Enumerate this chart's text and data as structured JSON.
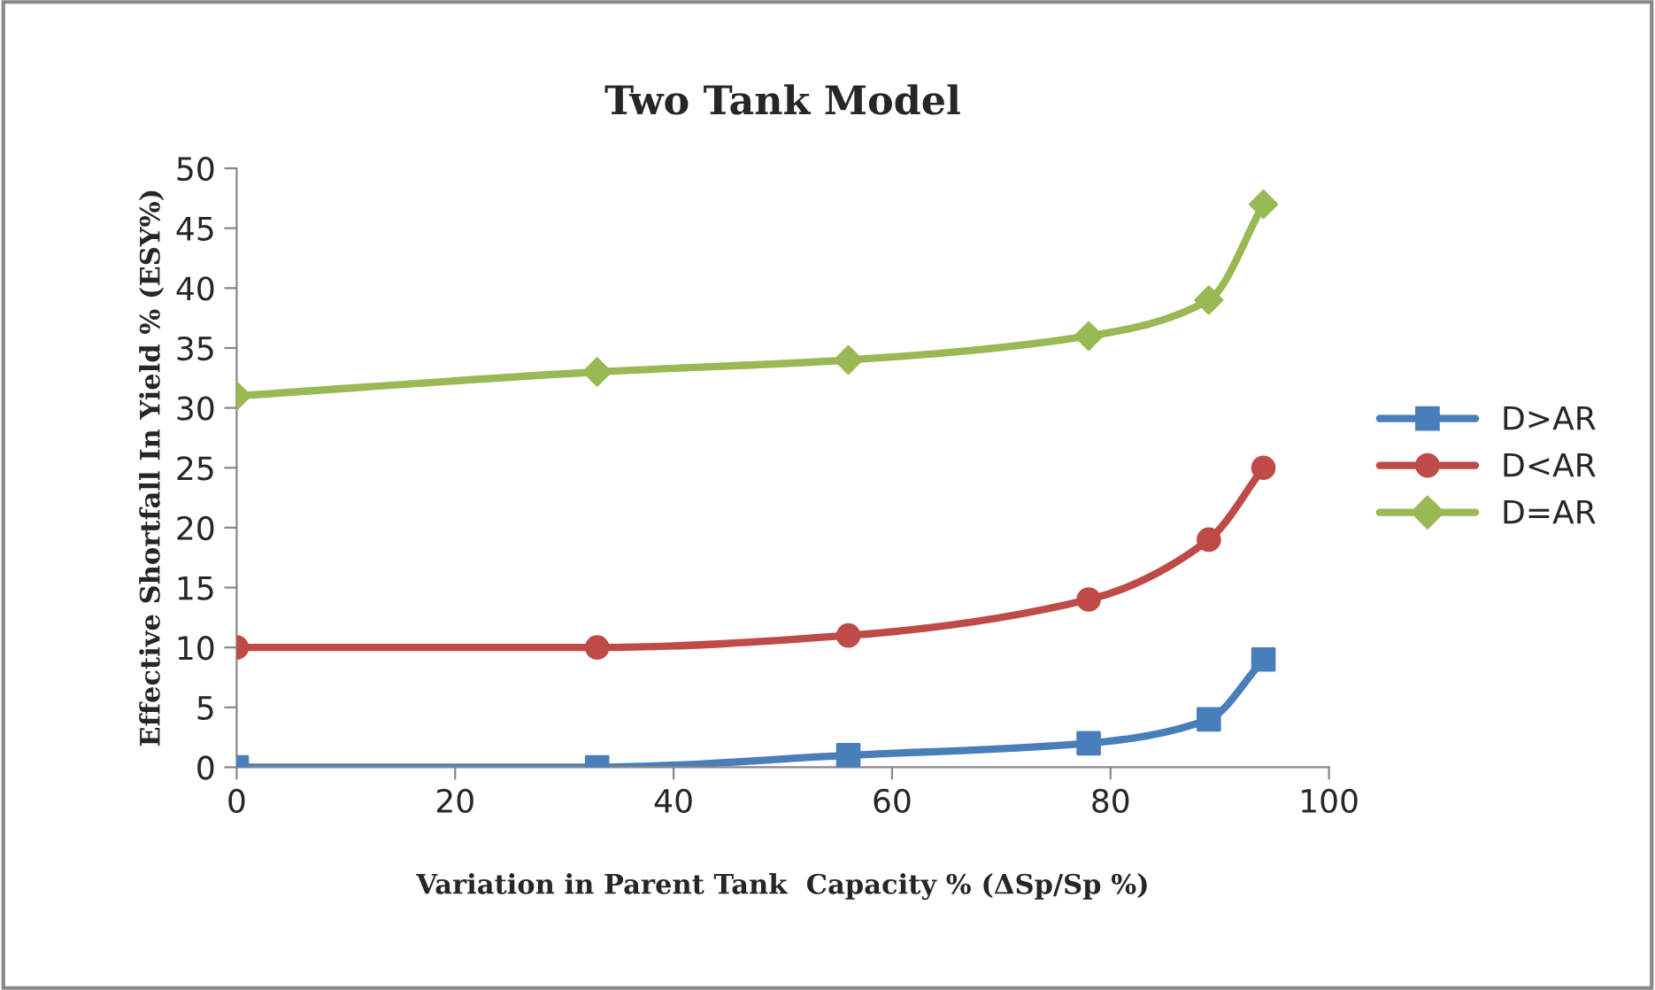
{
  "chart_data": {
    "type": "line",
    "title": "Two Tank Model",
    "xlabel": "Variation in Parent Tank  Capacity % (ΔSp/Sp %)",
    "ylabel": "Effective Shortfall In Yield % (ESY%)",
    "x": [
      0,
      33,
      56,
      78,
      89,
      94
    ],
    "series": [
      {
        "name": "D>AR",
        "color": "#4a7ebb",
        "marker": "square",
        "values": [
          0,
          0,
          1,
          2,
          4,
          9
        ]
      },
      {
        "name": "D<AR",
        "color": "#be4b48",
        "marker": "circle",
        "values": [
          10,
          10,
          11,
          14,
          19,
          25
        ]
      },
      {
        "name": "D=AR",
        "color": "#98b954",
        "marker": "diamond",
        "values": [
          31,
          33,
          34,
          36,
          39,
          47
        ]
      }
    ],
    "xlim": [
      0,
      100
    ],
    "xticks": [
      0,
      20,
      40,
      60,
      80,
      100
    ],
    "ylim": [
      0,
      50
    ],
    "yticks": [
      0,
      5,
      10,
      15,
      20,
      25,
      30,
      35,
      40,
      45,
      50
    ],
    "grid": false,
    "legend": "right",
    "line_style": "solid"
  }
}
